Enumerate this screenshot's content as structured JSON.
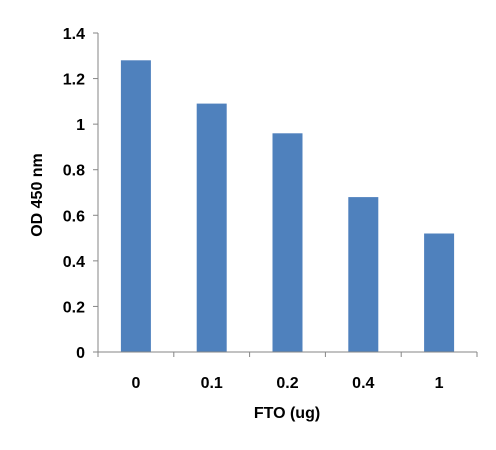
{
  "chart_data": {
    "type": "bar",
    "title": "",
    "xlabel": "FTO (ug)",
    "ylabel": "OD 450 nm",
    "categories": [
      "0",
      "0.1",
      "0.2",
      "0.4",
      "1"
    ],
    "values": [
      1.28,
      1.09,
      0.96,
      0.68,
      0.52
    ],
    "ylim": [
      0,
      1.4
    ],
    "yticks": [
      "0",
      "0.2",
      "0.4",
      "0.6",
      "0.8",
      "1",
      "1.2",
      "1.4"
    ],
    "grid": false,
    "legend": "none",
    "bar_color": "#4F81BD",
    "axis_color": "#868686"
  }
}
